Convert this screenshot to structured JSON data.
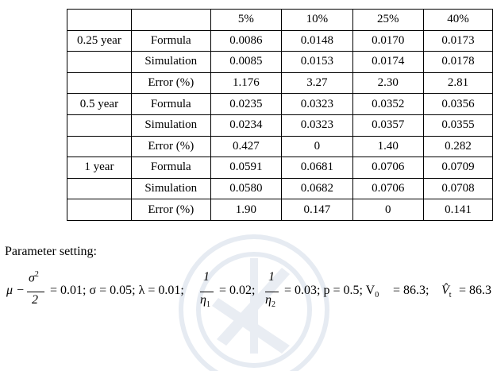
{
  "table": {
    "headers": [
      "",
      "",
      "5%",
      "10%",
      "25%",
      "40%"
    ],
    "rows": [
      [
        "",
        "",
        "5%",
        "10%",
        "25%",
        "40%"
      ],
      [
        "0.25 year",
        "Formula",
        "0.0086",
        "0.0148",
        "0.0170",
        "0.0173"
      ],
      [
        "",
        "Simulation",
        "0.0085",
        "0.0153",
        "0.0174",
        "0.0178"
      ],
      [
        "",
        "Error (%)",
        "1.176",
        "3.27",
        "2.30",
        "2.81"
      ],
      [
        "0.5 year",
        "Formula",
        "0.0235",
        "0.0323",
        "0.0352",
        "0.0356"
      ],
      [
        "",
        "Simulation",
        "0.0234",
        "0.0323",
        "0.0357",
        "0.0355"
      ],
      [
        "",
        "Error (%)",
        "0.427",
        "0",
        "1.40",
        "0.282"
      ],
      [
        "1 year",
        "Formula",
        "0.0591",
        "0.0681",
        "0.0706",
        "0.0709"
      ],
      [
        "",
        "Simulation",
        "0.0580",
        "0.0682",
        "0.0706",
        "0.0708"
      ],
      [
        "",
        "Error (%)",
        "1.90",
        "0.147",
        "0",
        "0.141"
      ]
    ]
  },
  "parameters": {
    "title": "Parameter setting:",
    "mu_minus": "μ −",
    "sigma_sq_num": "σ",
    "sigma_sq_exp": "2",
    "two_den": "2",
    "after_frac1": "= 0.01; σ = 0.05; λ = 0.01;",
    "one_a": "1",
    "eta1": "η",
    "eta1_sub": "1",
    "after_frac2": "= 0.02;",
    "one_b": "1",
    "eta2": "η",
    "eta2_sub": "2",
    "after_frac3": "= 0.03; p = 0.5; V",
    "v0_sub": "0",
    "after_v0": "= 86.3;",
    "vhat": "V̂",
    "vt_sub": "t",
    "after_vt": "= 86.3 ."
  }
}
